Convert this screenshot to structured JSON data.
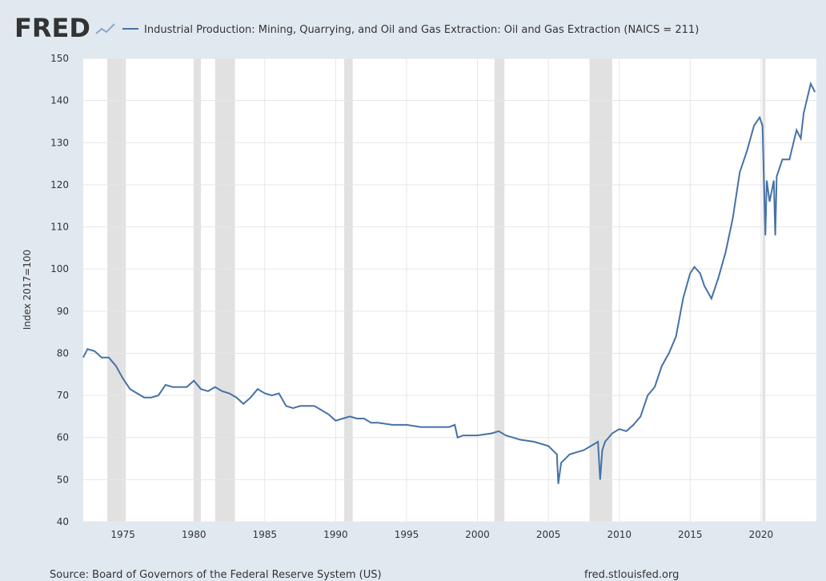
{
  "chart_data": {
    "type": "line",
    "logo": "FRED",
    "title": "Industrial Production: Mining, Quarrying, and Oil and Gas Extraction: Oil and Gas Extraction (NAICS = 211)",
    "y_label": "Index 2017=100",
    "source": "Source: Board of Governors of the Federal Reserve System (US)",
    "site": "fred.stlouisfed.org",
    "xlim": [
      1972.2,
      2023.9
    ],
    "xticks": [
      1975,
      1980,
      1985,
      1990,
      1995,
      2000,
      2005,
      2010,
      2015,
      2020
    ],
    "ylim": [
      40,
      150
    ],
    "yticks": [
      40,
      50,
      60,
      70,
      80,
      90,
      100,
      110,
      120,
      130,
      140,
      150
    ],
    "grid": true,
    "recessions": [
      [
        1973.9,
        1975.2
      ],
      [
        1980.0,
        1980.5
      ],
      [
        1981.5,
        1982.9
      ],
      [
        1990.6,
        1991.2
      ],
      [
        2001.2,
        2001.9
      ],
      [
        2007.9,
        2009.5
      ],
      [
        2020.1,
        2020.3
      ]
    ],
    "recession_color": "#e1e1e1",
    "x": [
      1972.2,
      1972.5,
      1973,
      1973.5,
      1974,
      1974.5,
      1975,
      1975.5,
      1976,
      1976.5,
      1977,
      1977.5,
      1978,
      1978.5,
      1979,
      1979.5,
      1980,
      1980.5,
      1981,
      1981.5,
      1982,
      1982.5,
      1983,
      1983.5,
      1984,
      1984.5,
      1985,
      1985.5,
      1986,
      1986.5,
      1987,
      1987.5,
      1988,
      1988.5,
      1989,
      1989.5,
      1990,
      1990.5,
      1991,
      1991.5,
      1992,
      1992.5,
      1993,
      1994,
      1995,
      1996,
      1997,
      1998,
      1998.4,
      1998.6,
      1999,
      2000,
      2001,
      2001.5,
      2002,
      2002.5,
      2003,
      2004,
      2005,
      2005.6,
      2005.7,
      2005.9,
      2006.5,
      2007,
      2007.5,
      2008,
      2008.5,
      2008.65,
      2008.8,
      2009,
      2009.5,
      2010,
      2010.5,
      2011,
      2011.5,
      2012,
      2012.5,
      2013,
      2013.5,
      2014,
      2014.5,
      2015,
      2015.3,
      2015.7,
      2016,
      2016.5,
      2017,
      2017.5,
      2018,
      2018.5,
      2019,
      2019.5,
      2019.9,
      2020.1,
      2020.3,
      2020.4,
      2020.6,
      2020.9,
      2021.0,
      2021.1,
      2021.5,
      2022,
      2022.5,
      2022.8,
      2023,
      2023.5,
      2023.8
    ],
    "series": [
      {
        "name": "Industrial Production: Mining, Quarrying, and Oil and Gas Extraction: Oil and Gas Extraction (NAICS = 211)",
        "color": "#4572a7",
        "values": [
          79,
          81,
          80.5,
          79,
          79,
          77,
          74,
          71.5,
          70.5,
          69.5,
          69.5,
          70,
          72.5,
          72,
          72,
          72,
          73.5,
          71.5,
          71,
          72,
          71,
          70.5,
          69.5,
          68,
          69.5,
          71.5,
          70.5,
          70,
          70.5,
          67.5,
          67,
          67.5,
          67.5,
          67.5,
          66.5,
          65.5,
          64,
          64.5,
          65,
          64.5,
          64.5,
          63.5,
          63.5,
          63,
          63,
          62.5,
          62.5,
          62.5,
          63,
          60,
          60.5,
          60.5,
          61,
          61.5,
          60.5,
          60,
          59.5,
          59,
          58,
          56,
          49,
          54,
          56,
          56.5,
          57,
          58,
          59,
          50,
          57,
          59,
          61,
          62,
          61.5,
          63,
          65,
          70,
          72,
          77,
          80,
          84,
          93,
          99,
          100.5,
          99,
          96,
          93,
          98,
          104,
          112,
          123,
          128,
          134,
          136,
          134,
          108,
          121,
          116,
          121,
          108,
          122,
          126,
          126,
          133,
          131,
          137,
          144,
          142
        ]
      }
    ]
  }
}
